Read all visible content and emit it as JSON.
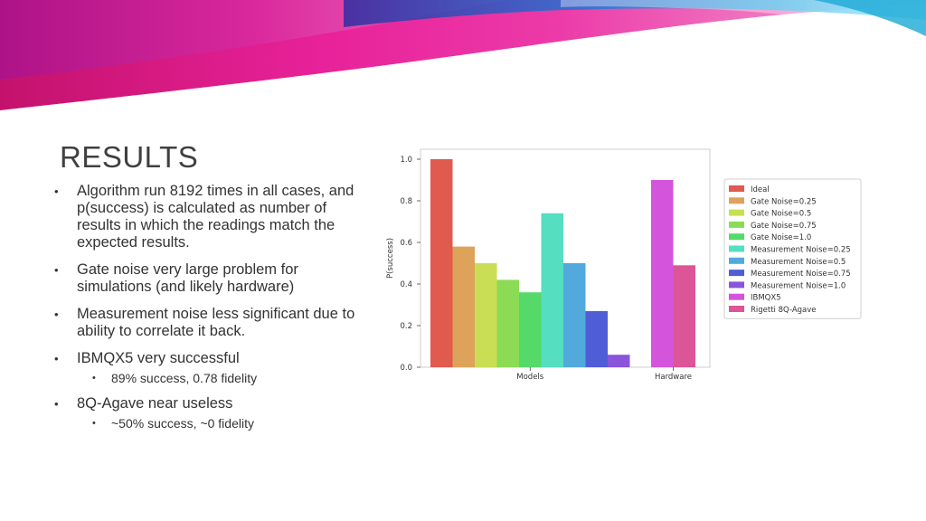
{
  "slide": {
    "title": "RESULTS",
    "bullets": [
      {
        "text": "Algorithm run 8192 times in all cases, and p(success) is calculated as number of results in which the readings match the expected results.",
        "level": 1
      },
      {
        "text": "Gate noise very large problem for simulations (and likely hardware)",
        "level": 1
      },
      {
        "text": "Measurement noise less significant due to ability to correlate it back.",
        "level": 1
      },
      {
        "text": "IBMQX5 very successful",
        "level": 1
      },
      {
        "text": "89% success, 0.78 fidelity",
        "level": 2
      },
      {
        "text": "8Q-Agave near useless",
        "level": 1
      },
      {
        "text": "~50% success, ~0 fidelity",
        "level": 2
      }
    ]
  },
  "chart_data": {
    "type": "bar",
    "ylabel": "P(success)",
    "xlabel": "",
    "ylim": [
      0,
      1.0
    ],
    "yticks": [
      "0.0",
      "0.2",
      "0.4",
      "0.6",
      "0.8",
      "1.0"
    ],
    "groups": [
      "Models",
      "Hardware"
    ],
    "legend_position": "right",
    "series": [
      {
        "name": "Ideal",
        "group": "Models",
        "value": 1.0,
        "color": "#e05a4e"
      },
      {
        "name": "Gate Noise=0.25",
        "group": "Models",
        "value": 0.58,
        "color": "#dea35a"
      },
      {
        "name": "Gate Noise=0.5",
        "group": "Models",
        "value": 0.5,
        "color": "#c9de55"
      },
      {
        "name": "Gate Noise=0.75",
        "group": "Models",
        "value": 0.42,
        "color": "#8bdb55"
      },
      {
        "name": "Gate Noise=1.0",
        "group": "Models",
        "value": 0.36,
        "color": "#55d969"
      },
      {
        "name": "Measurement Noise=0.25",
        "group": "Models",
        "value": 0.74,
        "color": "#55dec0"
      },
      {
        "name": "Measurement Noise=0.5",
        "group": "Models",
        "value": 0.5,
        "color": "#52a9dc"
      },
      {
        "name": "Measurement Noise=0.75",
        "group": "Models",
        "value": 0.27,
        "color": "#4f5ed6"
      },
      {
        "name": "Measurement Noise=1.0",
        "group": "Models",
        "value": 0.06,
        "color": "#8a55db"
      },
      {
        "name": "IBMQX5",
        "group": "Hardware",
        "value": 0.9,
        "color": "#d455dc"
      },
      {
        "name": "Rigetti 8Q-Agave",
        "group": "Hardware",
        "value": 0.49,
        "color": "#dc5596"
      }
    ]
  }
}
